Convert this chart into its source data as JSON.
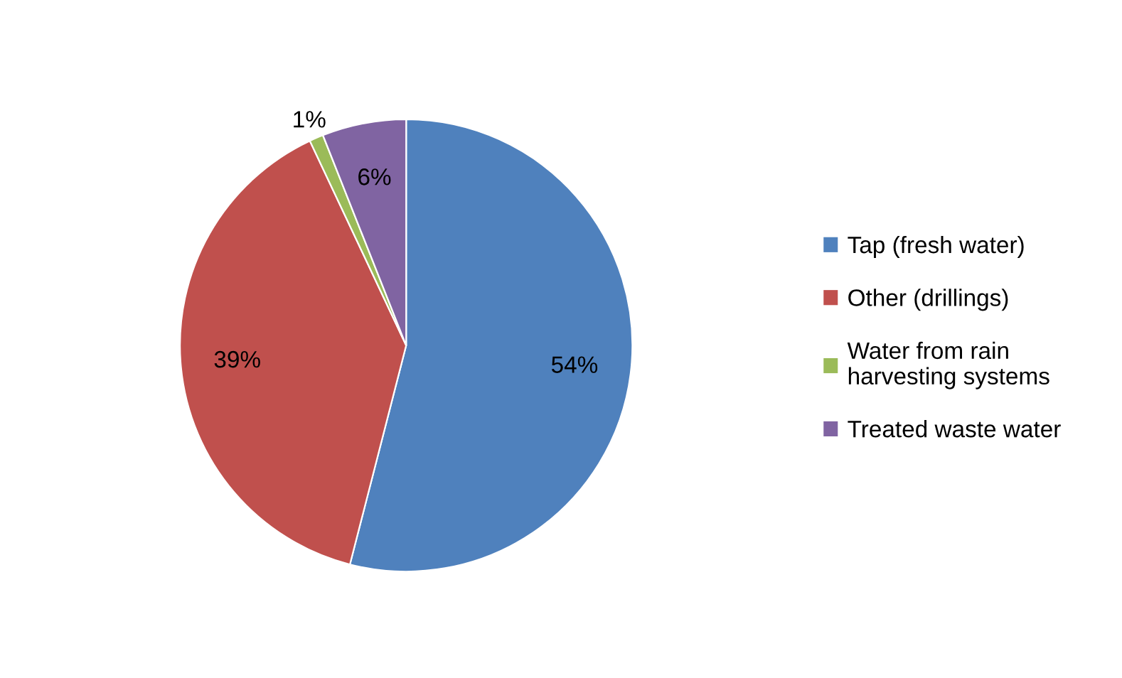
{
  "chart_data": {
    "type": "pie",
    "categories": [
      "Tap (fresh water)",
      "Other (drillings)",
      "Water from rain\nharvesting systems",
      "Treated waste water"
    ],
    "values": [
      54,
      39,
      1,
      6
    ],
    "colors": [
      "#4f81bd",
      "#c0504d",
      "#9bbb59",
      "#8064a2"
    ],
    "value_labels": [
      "54%",
      "39%",
      "1%",
      "6%"
    ],
    "legend": "right"
  }
}
